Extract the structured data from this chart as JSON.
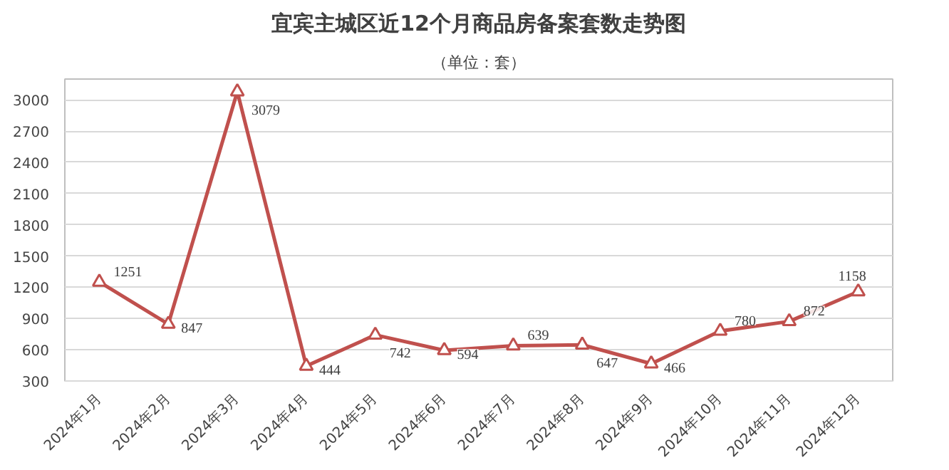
{
  "chart_data": {
    "type": "line",
    "title": "宜宾主城区近12个月商品房备案套数走势图",
    "subtitle": "（单位：套）",
    "categories": [
      "2024年1月",
      "2024年2月",
      "2024年3月",
      "2024年4月",
      "2024年5月",
      "2024年6月",
      "2024年7月",
      "2024年8月",
      "2024年9月",
      "2024年10月",
      "2024年11月",
      "2024年12月"
    ],
    "values": [
      1251,
      847,
      3079,
      444,
      742,
      594,
      639,
      647,
      466,
      780,
      872,
      1158
    ],
    "color": "#c0504d",
    "ylim": [
      300,
      3200
    ],
    "yticks": [
      300,
      600,
      900,
      1200,
      1500,
      1800,
      2100,
      2400,
      2700,
      3000
    ],
    "grid": "y",
    "marker": "triangle",
    "line_style": "solid",
    "data_labels": true
  }
}
